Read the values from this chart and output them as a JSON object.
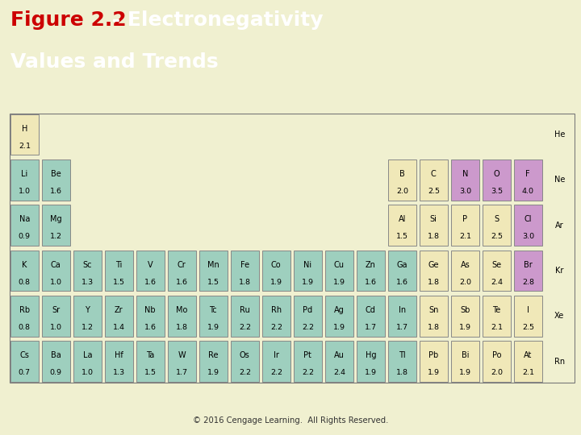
{
  "title_red": "Figure 2.2",
  "title_white1": " - Electronegativity",
  "title_line2": "Values and Trends",
  "footer_text": "© 2016 Cengage Learning.  All Rights Reserved.",
  "header_bg": "#2da818",
  "body_bg": "#f0f0d0",
  "cell_color_teal": "#9ecfbe",
  "cell_color_pink": "#cc99cc",
  "cell_color_cream": "#f0e8b8",
  "elements": [
    {
      "symbol": "H",
      "en": "2.1",
      "row": 0,
      "col": 0,
      "color": "cream"
    },
    {
      "symbol": "He",
      "en": "",
      "row": 0,
      "col": 17,
      "color": "none"
    },
    {
      "symbol": "Li",
      "en": "1.0",
      "row": 1,
      "col": 0,
      "color": "teal"
    },
    {
      "symbol": "Be",
      "en": "1.6",
      "row": 1,
      "col": 1,
      "color": "teal"
    },
    {
      "symbol": "B",
      "en": "2.0",
      "row": 1,
      "col": 12,
      "color": "cream"
    },
    {
      "symbol": "C",
      "en": "2.5",
      "row": 1,
      "col": 13,
      "color": "cream"
    },
    {
      "symbol": "N",
      "en": "3.0",
      "row": 1,
      "col": 14,
      "color": "pink"
    },
    {
      "symbol": "O",
      "en": "3.5",
      "row": 1,
      "col": 15,
      "color": "pink"
    },
    {
      "symbol": "F",
      "en": "4.0",
      "row": 1,
      "col": 16,
      "color": "pink"
    },
    {
      "symbol": "Ne",
      "en": "",
      "row": 1,
      "col": 17,
      "color": "none"
    },
    {
      "symbol": "Na",
      "en": "0.9",
      "row": 2,
      "col": 0,
      "color": "teal"
    },
    {
      "symbol": "Mg",
      "en": "1.2",
      "row": 2,
      "col": 1,
      "color": "teal"
    },
    {
      "symbol": "Al",
      "en": "1.5",
      "row": 2,
      "col": 12,
      "color": "cream"
    },
    {
      "symbol": "Si",
      "en": "1.8",
      "row": 2,
      "col": 13,
      "color": "cream"
    },
    {
      "symbol": "P",
      "en": "2.1",
      "row": 2,
      "col": 14,
      "color": "cream"
    },
    {
      "symbol": "S",
      "en": "2.5",
      "row": 2,
      "col": 15,
      "color": "cream"
    },
    {
      "symbol": "Cl",
      "en": "3.0",
      "row": 2,
      "col": 16,
      "color": "pink"
    },
    {
      "symbol": "Ar",
      "en": "",
      "row": 2,
      "col": 17,
      "color": "none"
    },
    {
      "symbol": "K",
      "en": "0.8",
      "row": 3,
      "col": 0,
      "color": "teal"
    },
    {
      "symbol": "Ca",
      "en": "1.0",
      "row": 3,
      "col": 1,
      "color": "teal"
    },
    {
      "symbol": "Sc",
      "en": "1.3",
      "row": 3,
      "col": 2,
      "color": "teal"
    },
    {
      "symbol": "Ti",
      "en": "1.5",
      "row": 3,
      "col": 3,
      "color": "teal"
    },
    {
      "symbol": "V",
      "en": "1.6",
      "row": 3,
      "col": 4,
      "color": "teal"
    },
    {
      "symbol": "Cr",
      "en": "1.6",
      "row": 3,
      "col": 5,
      "color": "teal"
    },
    {
      "symbol": "Mn",
      "en": "1.5",
      "row": 3,
      "col": 6,
      "color": "teal"
    },
    {
      "symbol": "Fe",
      "en": "1.8",
      "row": 3,
      "col": 7,
      "color": "teal"
    },
    {
      "symbol": "Co",
      "en": "1.9",
      "row": 3,
      "col": 8,
      "color": "teal"
    },
    {
      "symbol": "Ni",
      "en": "1.9",
      "row": 3,
      "col": 9,
      "color": "teal"
    },
    {
      "symbol": "Cu",
      "en": "1.9",
      "row": 3,
      "col": 10,
      "color": "teal"
    },
    {
      "symbol": "Zn",
      "en": "1.6",
      "row": 3,
      "col": 11,
      "color": "teal"
    },
    {
      "symbol": "Ga",
      "en": "1.6",
      "row": 3,
      "col": 12,
      "color": "teal"
    },
    {
      "symbol": "Ge",
      "en": "1.8",
      "row": 3,
      "col": 13,
      "color": "cream"
    },
    {
      "symbol": "As",
      "en": "2.0",
      "row": 3,
      "col": 14,
      "color": "cream"
    },
    {
      "symbol": "Se",
      "en": "2.4",
      "row": 3,
      "col": 15,
      "color": "cream"
    },
    {
      "symbol": "Br",
      "en": "2.8",
      "row": 3,
      "col": 16,
      "color": "pink"
    },
    {
      "symbol": "Kr",
      "en": "",
      "row": 3,
      "col": 17,
      "color": "none"
    },
    {
      "symbol": "Rb",
      "en": "0.8",
      "row": 4,
      "col": 0,
      "color": "teal"
    },
    {
      "symbol": "Sr",
      "en": "1.0",
      "row": 4,
      "col": 1,
      "color": "teal"
    },
    {
      "symbol": "Y",
      "en": "1.2",
      "row": 4,
      "col": 2,
      "color": "teal"
    },
    {
      "symbol": "Zr",
      "en": "1.4",
      "row": 4,
      "col": 3,
      "color": "teal"
    },
    {
      "symbol": "Nb",
      "en": "1.6",
      "row": 4,
      "col": 4,
      "color": "teal"
    },
    {
      "symbol": "Mo",
      "en": "1.8",
      "row": 4,
      "col": 5,
      "color": "teal"
    },
    {
      "symbol": "Tc",
      "en": "1.9",
      "row": 4,
      "col": 6,
      "color": "teal"
    },
    {
      "symbol": "Ru",
      "en": "2.2",
      "row": 4,
      "col": 7,
      "color": "teal"
    },
    {
      "symbol": "Rh",
      "en": "2.2",
      "row": 4,
      "col": 8,
      "color": "teal"
    },
    {
      "symbol": "Pd",
      "en": "2.2",
      "row": 4,
      "col": 9,
      "color": "teal"
    },
    {
      "symbol": "Ag",
      "en": "1.9",
      "row": 4,
      "col": 10,
      "color": "teal"
    },
    {
      "symbol": "Cd",
      "en": "1.7",
      "row": 4,
      "col": 11,
      "color": "teal"
    },
    {
      "symbol": "In",
      "en": "1.7",
      "row": 4,
      "col": 12,
      "color": "teal"
    },
    {
      "symbol": "Sn",
      "en": "1.8",
      "row": 4,
      "col": 13,
      "color": "cream"
    },
    {
      "symbol": "Sb",
      "en": "1.9",
      "row": 4,
      "col": 14,
      "color": "cream"
    },
    {
      "symbol": "Te",
      "en": "2.1",
      "row": 4,
      "col": 15,
      "color": "cream"
    },
    {
      "symbol": "I",
      "en": "2.5",
      "row": 4,
      "col": 16,
      "color": "cream"
    },
    {
      "symbol": "Xe",
      "en": "",
      "row": 4,
      "col": 17,
      "color": "none"
    },
    {
      "symbol": "Cs",
      "en": "0.7",
      "row": 5,
      "col": 0,
      "color": "teal"
    },
    {
      "symbol": "Ba",
      "en": "0.9",
      "row": 5,
      "col": 1,
      "color": "teal"
    },
    {
      "symbol": "La",
      "en": "1.0",
      "row": 5,
      "col": 2,
      "color": "teal"
    },
    {
      "symbol": "Hf",
      "en": "1.3",
      "row": 5,
      "col": 3,
      "color": "teal"
    },
    {
      "symbol": "Ta",
      "en": "1.5",
      "row": 5,
      "col": 4,
      "color": "teal"
    },
    {
      "symbol": "W",
      "en": "1.7",
      "row": 5,
      "col": 5,
      "color": "teal"
    },
    {
      "symbol": "Re",
      "en": "1.9",
      "row": 5,
      "col": 6,
      "color": "teal"
    },
    {
      "symbol": "Os",
      "en": "2.2",
      "row": 5,
      "col": 7,
      "color": "teal"
    },
    {
      "symbol": "Ir",
      "en": "2.2",
      "row": 5,
      "col": 8,
      "color": "teal"
    },
    {
      "symbol": "Pt",
      "en": "2.2",
      "row": 5,
      "col": 9,
      "color": "teal"
    },
    {
      "symbol": "Au",
      "en": "2.4",
      "row": 5,
      "col": 10,
      "color": "teal"
    },
    {
      "symbol": "Hg",
      "en": "1.9",
      "row": 5,
      "col": 11,
      "color": "teal"
    },
    {
      "symbol": "Tl",
      "en": "1.8",
      "row": 5,
      "col": 12,
      "color": "teal"
    },
    {
      "symbol": "Pb",
      "en": "1.9",
      "row": 5,
      "col": 13,
      "color": "cream"
    },
    {
      "symbol": "Bi",
      "en": "1.9",
      "row": 5,
      "col": 14,
      "color": "cream"
    },
    {
      "symbol": "Po",
      "en": "2.0",
      "row": 5,
      "col": 15,
      "color": "cream"
    },
    {
      "symbol": "At",
      "en": "2.1",
      "row": 5,
      "col": 16,
      "color": "cream"
    },
    {
      "symbol": "Rn",
      "en": "",
      "row": 5,
      "col": 17,
      "color": "none"
    }
  ]
}
